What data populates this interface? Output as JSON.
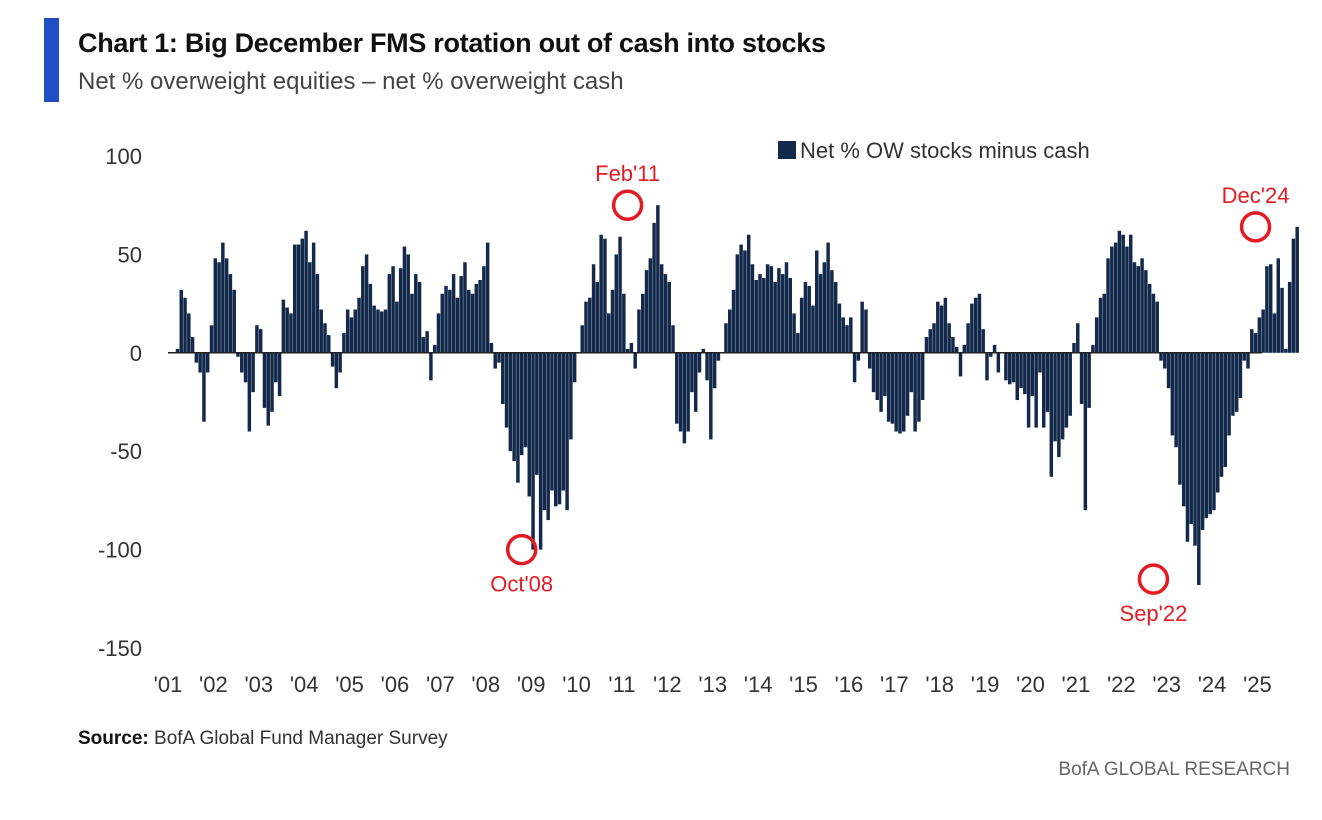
{
  "header": {
    "title": "Chart 1: Big December FMS rotation out of cash into stocks",
    "subtitle": "Net % overweight equities – net % overweight cash"
  },
  "footer": {
    "source_label": "Source:",
    "source_text": "BofA Global Fund Manager Survey",
    "brand": "BofA GLOBAL RESEARCH"
  },
  "colors": {
    "bars": "#13294b",
    "annotation": "#e31b23",
    "accent": "#1f4fc4"
  },
  "chart_data": {
    "type": "bar",
    "legend": {
      "label": "Net % OW stocks minus cash",
      "position": "top-right"
    },
    "ylim": [
      -150,
      100
    ],
    "yticks": [
      100,
      50,
      0,
      -50,
      -100,
      -150
    ],
    "xlim": [
      2001.0,
      2025.1
    ],
    "xticks": [
      {
        "label": "'01",
        "x": 2001
      },
      {
        "label": "'02",
        "x": 2002
      },
      {
        "label": "'03",
        "x": 2003
      },
      {
        "label": "'04",
        "x": 2004
      },
      {
        "label": "'05",
        "x": 2005
      },
      {
        "label": "'06",
        "x": 2006
      },
      {
        "label": "'07",
        "x": 2007
      },
      {
        "label": "'08",
        "x": 2008
      },
      {
        "label": "'09",
        "x": 2009
      },
      {
        "label": "'10",
        "x": 2010
      },
      {
        "label": "'11",
        "x": 2011
      },
      {
        "label": "'12",
        "x": 2012
      },
      {
        "label": "'13",
        "x": 2013
      },
      {
        "label": "'14",
        "x": 2014
      },
      {
        "label": "'15",
        "x": 2015
      },
      {
        "label": "'16",
        "x": 2016
      },
      {
        "label": "'17",
        "x": 2017
      },
      {
        "label": "'18",
        "x": 2018
      },
      {
        "label": "'19",
        "x": 2019
      },
      {
        "label": "'20",
        "x": 2020
      },
      {
        "label": "'21",
        "x": 2021
      },
      {
        "label": "'22",
        "x": 2022
      },
      {
        "label": "'23",
        "x": 2023
      },
      {
        "label": "'24",
        "x": 2024
      },
      {
        "label": "'25",
        "x": 2025
      }
    ],
    "series": [
      {
        "name": "Net % OW stocks minus cash",
        "start": "2001-03",
        "values": [
          2,
          32,
          28,
          20,
          8,
          -5,
          -10,
          -35,
          -10,
          14,
          48,
          46,
          56,
          48,
          40,
          32,
          -2,
          -10,
          -15,
          -40,
          -20,
          14,
          12,
          -28,
          -37,
          -30,
          -15,
          -22,
          27,
          23,
          20,
          55,
          55,
          58,
          62,
          46,
          56,
          40,
          22,
          15,
          9,
          -7,
          -18,
          -10,
          10,
          22,
          18,
          22,
          28,
          44,
          50,
          35,
          24,
          22,
          21,
          22,
          40,
          44,
          26,
          43,
          54,
          50,
          30,
          40,
          36,
          8,
          11,
          -14,
          4,
          20,
          30,
          34,
          32,
          40,
          28,
          39,
          46,
          32,
          30,
          35,
          37,
          44,
          56,
          5,
          -8,
          -5,
          -26,
          -38,
          -50,
          -55,
          -66,
          -52,
          -48,
          -73,
          -100,
          -62,
          -100,
          -80,
          -85,
          -70,
          -78,
          -77,
          -70,
          -80,
          -44,
          -15,
          0,
          14,
          26,
          28,
          45,
          36,
          60,
          58,
          20,
          32,
          50,
          59,
          30,
          2,
          5,
          -8,
          22,
          30,
          42,
          48,
          66,
          75,
          45,
          40,
          36,
          14,
          -36,
          -40,
          -46,
          -40,
          -20,
          -30,
          -10,
          2,
          -14,
          -44,
          -18,
          -4,
          0,
          15,
          22,
          32,
          50,
          55,
          52,
          60,
          45,
          37,
          40,
          38,
          45,
          44,
          36,
          43,
          40,
          46,
          38,
          20,
          10,
          28,
          36,
          34,
          24,
          52,
          40,
          46,
          56,
          42,
          36,
          25,
          18,
          14,
          18,
          -15,
          -4,
          26,
          22,
          -8,
          -20,
          -24,
          -30,
          -22,
          -35,
          -36,
          -40,
          -41,
          -40,
          -32,
          -20,
          -40,
          -35,
          -24,
          8,
          12,
          15,
          26,
          24,
          28,
          15,
          8,
          3,
          -12,
          4,
          15,
          25,
          28,
          30,
          12,
          -14,
          -2,
          4,
          -10,
          0,
          -14,
          -16,
          -15,
          -24,
          -18,
          -21,
          -38,
          -22,
          -38,
          -10,
          -38,
          -30,
          -63,
          -45,
          -53,
          -44,
          -38,
          -32,
          5,
          15,
          -26,
          -80,
          -28,
          4,
          18,
          28,
          30,
          48,
          54,
          56,
          62,
          60,
          54,
          60,
          46,
          44,
          48,
          42,
          35,
          30,
          26,
          -4,
          -8,
          -18,
          -42,
          -48,
          -67,
          -78,
          -96,
          -87,
          -98,
          -118,
          -90,
          -84,
          -82,
          -80,
          -71,
          -63,
          -58,
          -42,
          -32,
          -30,
          -23,
          -4,
          -8,
          12,
          10,
          18,
          22,
          44,
          45,
          20,
          48,
          33,
          2,
          36,
          58,
          64
        ]
      }
    ],
    "annotations": [
      {
        "label": "Oct'08",
        "date": "2008-10",
        "value": -100,
        "label_pos": "below"
      },
      {
        "label": "Feb'11",
        "date": "2011-02",
        "value": 75,
        "label_pos": "above"
      },
      {
        "label": "Sep'22",
        "date": "2022-09",
        "value": -115,
        "label_pos": "below"
      },
      {
        "label": "Dec'24",
        "date": "2024-12",
        "value": 64,
        "label_pos": "above"
      }
    ]
  }
}
